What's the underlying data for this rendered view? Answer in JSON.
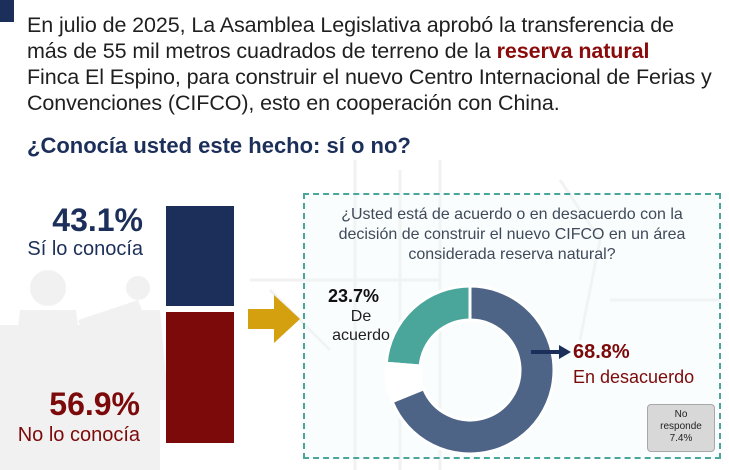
{
  "intro": {
    "part1": "En julio de 2025, La Asamblea Legislativa aprobó la transferencia de más de 55 mil metros cuadrados de terreno de la",
    "highlight": "reserva natural",
    "part2": "Finca El Espino, para construir el nuevo Centro Internacional de Ferias y Convenciones (CIFCO), esto en cooperación con China.",
    "question": "¿Conocía usted este hecho: sí o no?"
  },
  "colors": {
    "navy": "#1c2f5a",
    "dark_red": "#7d0a0a",
    "teal": "#4aa69b",
    "slate": "#4e6487",
    "gold": "#d4a00f"
  },
  "chart_data": [
    {
      "type": "bar",
      "stacked": true,
      "categories": [
        "Sí lo conocía",
        "No lo conocía"
      ],
      "values": [
        43.1,
        56.9
      ],
      "labels": [
        "43.1%",
        "56.9%"
      ],
      "colors": [
        "#1c2f5a",
        "#7d0a0a"
      ]
    },
    {
      "type": "pie",
      "donut": true,
      "question": "¿Usted está de acuerdo o en desacuerdo con la decisión de construir el nuevo CIFCO en un área considerada reserva natural?",
      "slices": [
        {
          "key": "agree",
          "name": "De acuerdo",
          "value": 23.7,
          "label": "23.7%",
          "color": "#4aa69b"
        },
        {
          "key": "disagree",
          "name": "En desacuerdo",
          "value": 68.8,
          "label": "68.8%",
          "color": "#4e6487"
        },
        {
          "key": "nr",
          "name": "No responde",
          "value": 7.4,
          "label": "7.4%",
          "color": "#ffffff"
        }
      ],
      "no_response_label": "No responde"
    }
  ]
}
